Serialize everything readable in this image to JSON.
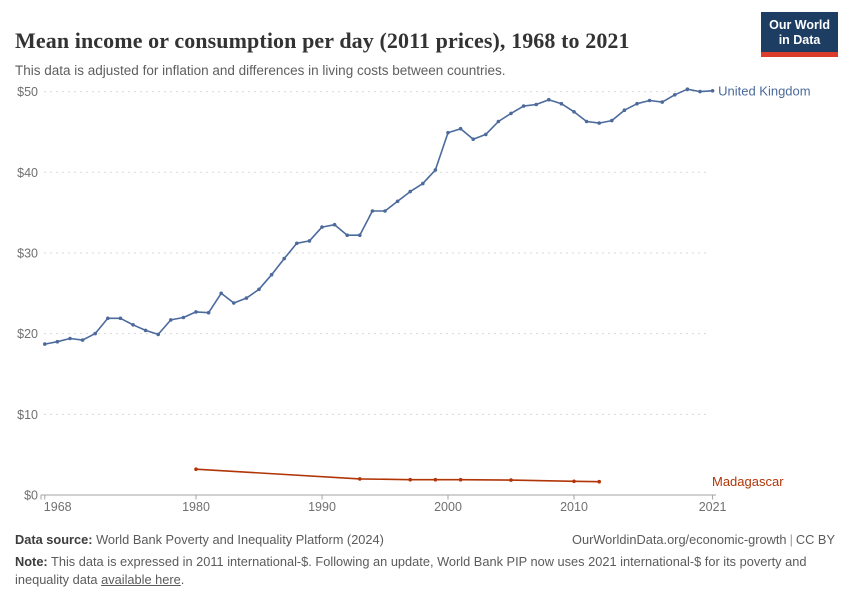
{
  "header": {
    "title": "Mean income or consumption per day (2011 prices), 1968 to 2021",
    "subtitle": "This data is adjusted for inflation and differences in living costs between countries.",
    "logo": {
      "line1": "Our World",
      "line2": "in Data",
      "bg_color": "#1d3d63",
      "accent_color": "#dc3c2c"
    }
  },
  "chart_data": {
    "type": "line",
    "title": "Mean income or consumption per day (2011 prices), 1968 to 2021",
    "xlabel": "",
    "ylabel": "",
    "xlim": [
      1968,
      2021
    ],
    "ylim": [
      0,
      50
    ],
    "grid": "horizontal-dashed",
    "legend_position": "end-of-line-labels",
    "x_ticks": [
      {
        "label": "1968",
        "v": 1968
      },
      {
        "label": "1980",
        "v": 1980
      },
      {
        "label": "1990",
        "v": 1990
      },
      {
        "label": "2000",
        "v": 2000
      },
      {
        "label": "2010",
        "v": 2010
      },
      {
        "label": "2021",
        "v": 2021
      }
    ],
    "y_ticks": [
      {
        "label": "$0",
        "v": 0
      },
      {
        "label": "$10",
        "v": 10
      },
      {
        "label": "$20",
        "v": 20
      },
      {
        "label": "$30",
        "v": 30
      },
      {
        "label": "$40",
        "v": 40
      },
      {
        "label": "$50",
        "v": 50
      }
    ],
    "series": [
      {
        "name": "United Kingdom",
        "color": "#4C6A9C",
        "x": [
          1968,
          1969,
          1970,
          1971,
          1972,
          1973,
          1974,
          1975,
          1976,
          1977,
          1978,
          1979,
          1980,
          1981,
          1982,
          1983,
          1984,
          1985,
          1986,
          1987,
          1988,
          1989,
          1990,
          1991,
          1992,
          1993,
          1994,
          1995,
          1996,
          1997,
          1998,
          1999,
          2000,
          2001,
          2002,
          2003,
          2004,
          2005,
          2006,
          2007,
          2008,
          2009,
          2010,
          2011,
          2012,
          2013,
          2014,
          2015,
          2016,
          2017,
          2018,
          2019,
          2020,
          2021
        ],
        "values": [
          18.7,
          19.0,
          19.4,
          19.2,
          20.0,
          21.9,
          21.9,
          21.1,
          20.4,
          19.9,
          21.7,
          22.0,
          22.7,
          22.6,
          25.0,
          23.8,
          24.4,
          25.5,
          27.3,
          29.3,
          31.2,
          31.5,
          33.2,
          33.5,
          32.2,
          32.2,
          35.2,
          35.2,
          36.4,
          37.6,
          38.6,
          40.3,
          44.9,
          45.4,
          44.1,
          44.7,
          46.3,
          47.3,
          48.2,
          48.4,
          49.0,
          48.5,
          47.5,
          46.3,
          46.1,
          46.4,
          47.7,
          48.5,
          48.9,
          48.7,
          49.6,
          50.3,
          50.0,
          50.1
        ]
      },
      {
        "name": "Madagascar",
        "color": "#B13507",
        "x": [
          1980,
          1993,
          1997,
          1999,
          2001,
          2005,
          2010,
          2012
        ],
        "values": [
          3.2,
          2.0,
          1.9,
          1.9,
          1.9,
          1.85,
          1.7,
          1.65
        ]
      }
    ]
  },
  "footer": {
    "source_label": "Data source:",
    "source_text": " World Bank Poverty and Inequality Platform (2024)",
    "attribution": "OurWorldinData.org/economic-growth",
    "separator": "|",
    "license": "CC BY",
    "note_label": "Note:",
    "note_text": " This data is expressed in 2011 international-$. Following an update, World Bank PIP now uses 2021 international-$ for its poverty and inequality data ",
    "note_link": "available here",
    "note_suffix": "."
  }
}
